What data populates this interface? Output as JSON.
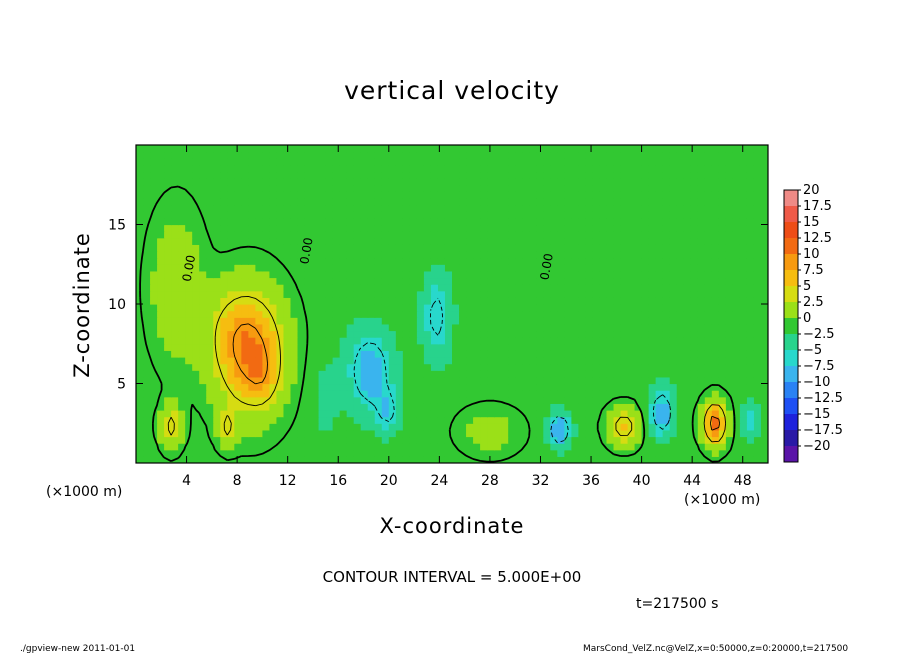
{
  "chart_data": {
    "type": "heatmap",
    "title": "vertical velocity",
    "xlabel": "X-coordinate",
    "ylabel": "Z-coordinate",
    "x_unit_label": "(×1000 m)",
    "xlim": [
      0,
      50
    ],
    "ylim": [
      0,
      20
    ],
    "x_ticks": [
      4,
      8,
      12,
      16,
      20,
      24,
      28,
      32,
      36,
      40,
      44,
      48
    ],
    "y_ticks": [
      5,
      10,
      15
    ],
    "contour_interval_text": "CONTOUR INTERVAL = 5.000E+00",
    "contour_zero_label": "0.00",
    "time_text": "t=217500 s",
    "colorbar": {
      "levels": [
        20,
        17.5,
        15,
        12.5,
        10,
        7.5,
        5,
        2.5,
        0,
        -2.5,
        -5,
        -7.5,
        -10,
        -12.5,
        -15,
        -17.5,
        -20
      ],
      "labels": [
        "20",
        "17.5",
        "15",
        "12.5",
        "10",
        "7.5",
        "5",
        "2.5",
        "0",
        "−2.5",
        "−5",
        "−7.5",
        "−10",
        "−12.5",
        "−15",
        "−17.5",
        "−20"
      ],
      "colors": [
        "#ef8a86",
        "#ef5a48",
        "#ee4d16",
        "#f26a12",
        "#f79a10",
        "#f6bd10",
        "#d6dc12",
        "#9be018",
        "#32c832",
        "#28d38c",
        "#28d8cc",
        "#3ab4ee",
        "#2a82f4",
        "#1e50f4",
        "#1e22dc",
        "#2a1aa6",
        "#5a14a8"
      ]
    },
    "background_value": 0,
    "features": [
      {
        "x": 9,
        "z": 7,
        "sx": 2.6,
        "sz": 3.6,
        "value": 11
      },
      {
        "x": 10,
        "z": 5.5,
        "sx": 1.1,
        "sz": 1.6,
        "value": 3
      },
      {
        "x": 7.5,
        "z": 8.5,
        "sx": 2.2,
        "sz": 2.4,
        "value": 2
      },
      {
        "x": 2.8,
        "z": 2.3,
        "sx": 0.8,
        "sz": 1.3,
        "value": 6
      },
      {
        "x": 7.2,
        "z": 2.2,
        "sx": 0.7,
        "sz": 1.1,
        "value": 5
      },
      {
        "x": 3.2,
        "z": 11,
        "sx": 2.0,
        "sz": 4.5,
        "value": 3
      },
      {
        "x": 18.5,
        "z": 5.8,
        "sx": 1.8,
        "sz": 2.6,
        "value": -8
      },
      {
        "x": 20,
        "z": 3.2,
        "sx": 1.0,
        "sz": 1.4,
        "value": -5
      },
      {
        "x": 23.8,
        "z": 9.2,
        "sx": 1.2,
        "sz": 2.8,
        "value": -6
      },
      {
        "x": 33.5,
        "z": 2.1,
        "sx": 0.9,
        "sz": 1.1,
        "value": -9
      },
      {
        "x": 38.6,
        "z": 2.3,
        "sx": 1.2,
        "sz": 1.1,
        "value": 7
      },
      {
        "x": 41.6,
        "z": 3.2,
        "sx": 1.0,
        "sz": 1.6,
        "value": -8
      },
      {
        "x": 45.8,
        "z": 2.5,
        "sx": 0.9,
        "sz": 1.3,
        "value": 12
      },
      {
        "x": 48.6,
        "z": 2.6,
        "sx": 0.7,
        "sz": 1.2,
        "value": -5
      },
      {
        "x": 28,
        "z": 2,
        "sx": 2.5,
        "sz": 1.5,
        "value": 2
      },
      {
        "x": 15,
        "z": 4,
        "sx": 1.2,
        "sz": 3.0,
        "value": -2
      }
    ]
  },
  "footer": {
    "left": "./gpview-new  2011-01-01",
    "right": "MarsCond_VelZ.nc@VelZ,x=0:50000,z=0:20000,t=217500"
  }
}
